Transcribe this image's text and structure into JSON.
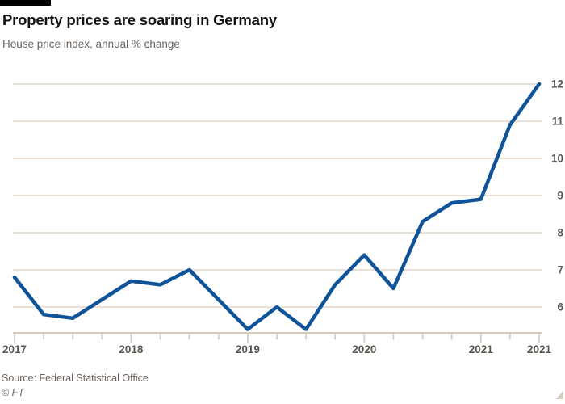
{
  "header": {
    "bar_color": "#000000"
  },
  "footer": {
    "source": "Source: Federal Statistical Office",
    "credit": "© FT"
  },
  "chart_data": {
    "type": "line",
    "title": "Property prices are soaring in Germany",
    "subtitle": "House price index, annual % change",
    "x": [
      "2017Q1",
      "2017Q2",
      "2017Q3",
      "2017Q4",
      "2018Q1",
      "2018Q2",
      "2018Q3",
      "2018Q4",
      "2019Q1",
      "2019Q2",
      "2019Q3",
      "2019Q4",
      "2020Q1",
      "2020Q2",
      "2020Q3",
      "2020Q4",
      "2021Q1",
      "2021Q2",
      "2021Q3"
    ],
    "values": [
      6.8,
      5.8,
      5.7,
      6.2,
      6.7,
      6.6,
      7.0,
      6.2,
      5.4,
      6.0,
      5.4,
      6.6,
      7.4,
      6.5,
      8.3,
      8.8,
      8.9,
      10.9,
      12.0
    ],
    "x_tick_labels": [
      {
        "index": 0,
        "label": "2017"
      },
      {
        "index": 4,
        "label": "2018"
      },
      {
        "index": 8,
        "label": "2019"
      },
      {
        "index": 12,
        "label": "2020"
      },
      {
        "index": 16,
        "label": "2021"
      },
      {
        "index": 18,
        "label": "2021"
      }
    ],
    "y_ticks": [
      6,
      7,
      8,
      9,
      10,
      11,
      12
    ],
    "ylim": [
      5.3,
      12.2
    ],
    "xlabel": "",
    "ylabel": "",
    "legend": "none",
    "grid": "horizontal",
    "line_color": "#0f5499",
    "grid_color": "#e7dcd1",
    "axis_color": "#d8ccc0",
    "tick_label_color": "#5b5550"
  }
}
